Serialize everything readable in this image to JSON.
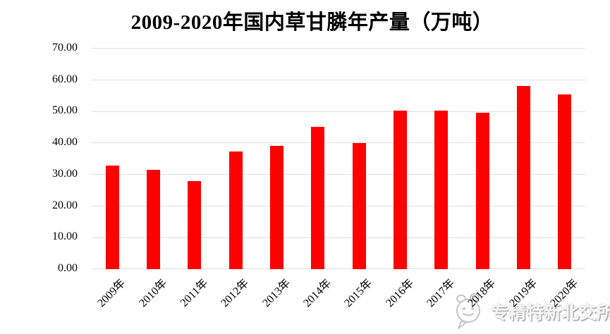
{
  "title": "2009-2020年国内草甘膦年产量（万吨）",
  "watermark": {
    "icon": "wechat-emoji-face-icon",
    "text": "专精特新北交所"
  },
  "colors": {
    "bar": "#FF0000",
    "gridline": "#DFDFDF",
    "text": "#000000",
    "background": "#FFFFFF",
    "watermark_text": "#E6E6E6"
  },
  "chart_data": {
    "type": "bar",
    "title": "2009-2020年国内草甘膦年产量（万吨）",
    "categories": [
      "2009年",
      "2010年",
      "2011年",
      "2012年",
      "2013年",
      "2014年",
      "2015年",
      "2016年",
      "2017年",
      "2018年",
      "2019年",
      "2020年"
    ],
    "values": [
      32.9,
      31.6,
      28.0,
      37.4,
      39.1,
      45.2,
      40.1,
      50.4,
      50.4,
      49.7,
      58.2,
      55.4
    ],
    "xlabel": "",
    "ylabel": "",
    "ylim": [
      0,
      70
    ],
    "ytick_interval": 10,
    "ytick_labels": [
      "0.00",
      "10.00",
      "20.00",
      "30.00",
      "40.00",
      "50.00",
      "60.00",
      "70.00"
    ],
    "grid": true,
    "legend": false,
    "bar_color": "#FF0000",
    "x_label_rotation_deg": 45
  }
}
